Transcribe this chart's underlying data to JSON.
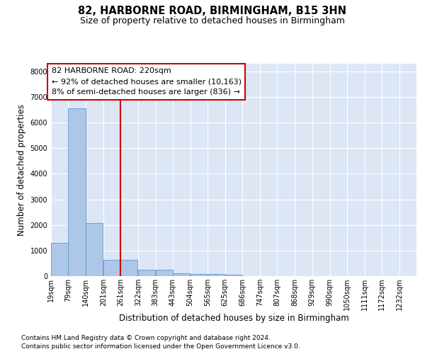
{
  "title": "82, HARBORNE ROAD, BIRMINGHAM, B15 3HN",
  "subtitle": "Size of property relative to detached houses in Birmingham",
  "xlabel": "Distribution of detached houses by size in Birmingham",
  "ylabel": "Number of detached properties",
  "footnote1": "Contains HM Land Registry data © Crown copyright and database right 2024.",
  "footnote2": "Contains public sector information licensed under the Open Government Licence v3.0.",
  "bar_color": "#aec6e8",
  "bar_edge_color": "#5b9bd5",
  "red_line_color": "#cc0000",
  "background_color": "#dce6f5",
  "annotation_text": "82 HARBORNE ROAD: 220sqm\n← 92% of detached houses are smaller (10,163)\n8% of semi-detached houses are larger (836) →",
  "property_bin_index": 4,
  "bar_edges": [
    19,
    79,
    140,
    201,
    261,
    322,
    383,
    443,
    504,
    565,
    625,
    686,
    747,
    807,
    868,
    929,
    990,
    1050,
    1111,
    1172,
    1232
  ],
  "bar_heights": [
    1300,
    6550,
    2080,
    650,
    630,
    250,
    240,
    120,
    80,
    80,
    50,
    10,
    10,
    5,
    5,
    3,
    2,
    2,
    1,
    1,
    0
  ],
  "red_line_x": 261,
  "ylim": [
    0,
    8300
  ],
  "yticks": [
    0,
    1000,
    2000,
    3000,
    4000,
    5000,
    6000,
    7000,
    8000
  ],
  "grid_color": "#ffffff",
  "title_fontsize": 10.5,
  "subtitle_fontsize": 9,
  "axis_label_fontsize": 8.5,
  "tick_fontsize": 7,
  "annotation_fontsize": 8,
  "footnote_fontsize": 6.5
}
